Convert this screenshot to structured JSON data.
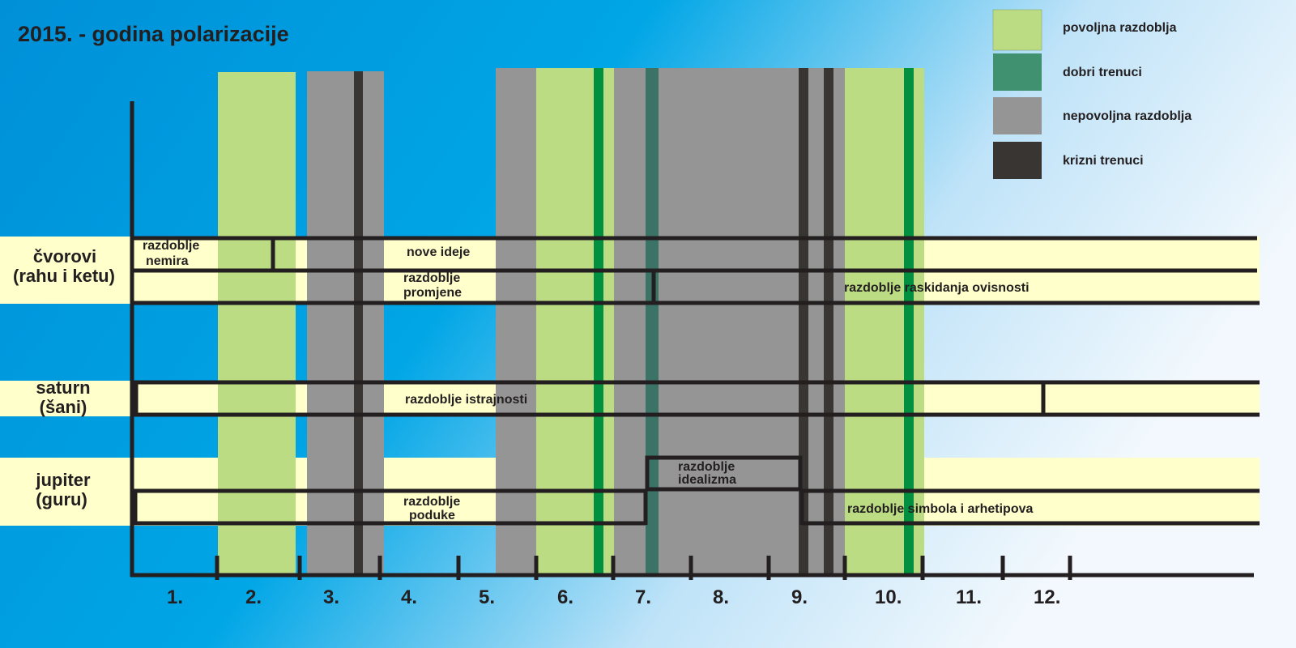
{
  "title": "2015. - godina polarizacije",
  "colors": {
    "povoljna": "#bcdc84",
    "dobri": "#3f9170",
    "nepovoljna": "#959595",
    "krizni": "#383532",
    "row_bg": "#ffffcc",
    "good_stripe": "#009040",
    "teal_stripe": "#3b7467"
  },
  "legend": [
    {
      "label": "povoljna razdoblja"
    },
    {
      "label": "dobri trenuci"
    },
    {
      "label": "nepovoljna razdoblja"
    },
    {
      "label": "krizni trenuci"
    }
  ],
  "rows": {
    "cvorovi": {
      "line1": "čvorovi",
      "line2": "(rahu i ketu)"
    },
    "saturn": {
      "line1": "saturn",
      "line2": "(šani)"
    },
    "jupiter": {
      "line1": "jupiter",
      "line2": "(guru)"
    }
  },
  "periods": {
    "nemira": {
      "line1": "razdoblje",
      "line2": "nemira"
    },
    "nove_ideje": "nove ideje",
    "promjene": {
      "line1": "razdoblje",
      "line2": "promjene"
    },
    "raskidanja": "razdoblje raskidanja ovisnosti",
    "istrajnosti": "razdoblje istrajnosti",
    "idealizma": {
      "line1": "razdoblje",
      "line2": "idealizma"
    },
    "poduke": {
      "line1": "razdoblje",
      "line2": "poduke"
    },
    "simbola": "razdoblje simbola i arhetipova"
  },
  "months": [
    "1.",
    "2.",
    "3.",
    "4.",
    "5.",
    "6.",
    "7.",
    "8.",
    "9.",
    "10.",
    "11.",
    "12."
  ]
}
